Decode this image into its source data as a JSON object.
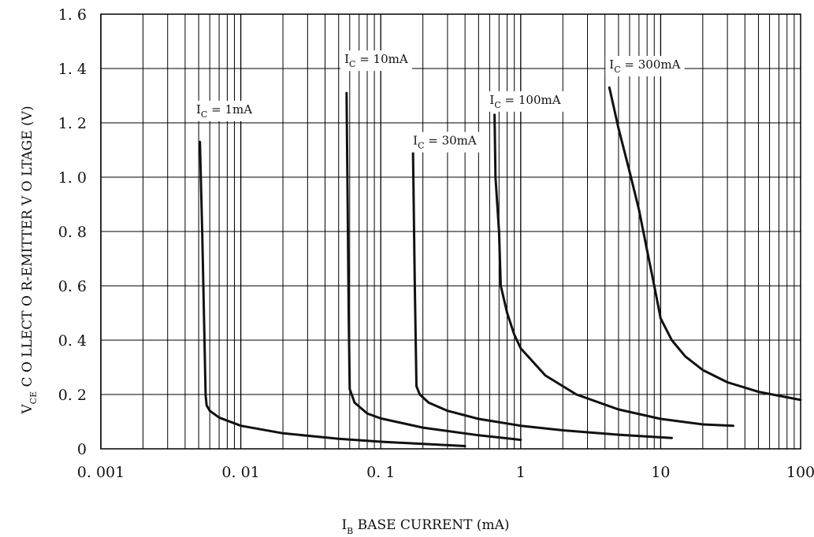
{
  "chart_data": {
    "type": "line",
    "title": "",
    "x_scale": "log",
    "xlim": [
      0.001,
      100
    ],
    "ylim": [
      0,
      1.6
    ],
    "grid": true,
    "xlabel": {
      "main": "I",
      "sub": "B",
      "rest": " BASE CURRENT (mA)"
    },
    "ylabel": {
      "main": "V",
      "sub": "CE",
      "rest": " C O LLECT O R-EMITTER V    O LTAGE (V)"
    },
    "x_ticks": [
      {
        "value": 0.001,
        "label": "0. 001"
      },
      {
        "value": 0.01,
        "label": "0. 01"
      },
      {
        "value": 0.1,
        "label": "0. 1"
      },
      {
        "value": 1,
        "label": "1"
      },
      {
        "value": 10,
        "label": "10"
      },
      {
        "value": 100,
        "label": "100"
      }
    ],
    "y_ticks": [
      {
        "value": 0,
        "label": "0"
      },
      {
        "value": 0.2,
        "label": "0. 2"
      },
      {
        "value": 0.4,
        "label": "0. 4"
      },
      {
        "value": 0.6,
        "label": "0. 6"
      },
      {
        "value": 0.8,
        "label": "0. 8"
      },
      {
        "value": 1.0,
        "label": "1. 0"
      },
      {
        "value": 1.2,
        "label": "1. 2"
      },
      {
        "value": 1.4,
        "label": "1. 4"
      },
      {
        "value": 1.6,
        "label": "1. 6"
      }
    ],
    "series": [
      {
        "name": "I_C = 1mA",
        "label": {
          "pre": "I",
          "sub": "C",
          "post": " = 1mA"
        },
        "label_at": {
          "x": 0.0048,
          "y": 1.235
        },
        "x": [
          0.0051,
          0.0053,
          0.0055,
          0.0056,
          0.0057,
          0.006,
          0.007,
          0.01,
          0.02,
          0.05,
          0.1,
          0.2,
          0.4
        ],
        "y": [
          1.13,
          0.8,
          0.4,
          0.2,
          0.16,
          0.14,
          0.115,
          0.085,
          0.057,
          0.037,
          0.026,
          0.018,
          0.01
        ]
      },
      {
        "name": "I_C = 10mA",
        "label": {
          "pre": "I",
          "sub": "C",
          "post": " = 10mA"
        },
        "label_at": {
          "x": 0.055,
          "y": 1.42
        },
        "x": [
          0.057,
          0.058,
          0.059,
          0.06,
          0.065,
          0.08,
          0.1,
          0.2,
          0.5,
          1.0
        ],
        "y": [
          1.31,
          0.9,
          0.5,
          0.22,
          0.17,
          0.13,
          0.112,
          0.078,
          0.05,
          0.033
        ]
      },
      {
        "name": "I_C = 30mA",
        "label": {
          "pre": "I",
          "sub": "C",
          "post": " = 30mA"
        },
        "label_at": {
          "x": 0.17,
          "y": 1.12
        },
        "x": [
          0.17,
          0.175,
          0.18,
          0.19,
          0.22,
          0.3,
          0.5,
          1,
          2,
          5,
          12
        ],
        "y": [
          1.1,
          0.6,
          0.23,
          0.2,
          0.17,
          0.14,
          0.11,
          0.085,
          0.068,
          0.052,
          0.04
        ]
      },
      {
        "name": "I_C = 100mA",
        "label": {
          "pre": "I",
          "sub": "C",
          "post": " = 100mA"
        },
        "label_at": {
          "x": 0.6,
          "y": 1.27
        },
        "x": [
          0.65,
          0.66,
          0.7,
          0.72,
          0.8,
          0.9,
          1.0,
          1.5,
          2.5,
          5,
          10,
          20,
          33
        ],
        "y": [
          1.23,
          1.0,
          0.8,
          0.6,
          0.5,
          0.42,
          0.37,
          0.27,
          0.2,
          0.145,
          0.11,
          0.09,
          0.085
        ]
      },
      {
        "name": "I_C = 300mA",
        "label": {
          "pre": "I",
          "sub": "C",
          "post": " = 300mA"
        },
        "label_at": {
          "x": 4.3,
          "y": 1.4
        },
        "x": [
          4.3,
          5,
          6,
          7,
          8,
          9,
          10,
          12,
          15,
          20,
          30,
          50,
          100
        ],
        "y": [
          1.33,
          1.18,
          1.02,
          0.88,
          0.73,
          0.6,
          0.48,
          0.4,
          0.34,
          0.29,
          0.245,
          0.21,
          0.18
        ]
      }
    ]
  }
}
